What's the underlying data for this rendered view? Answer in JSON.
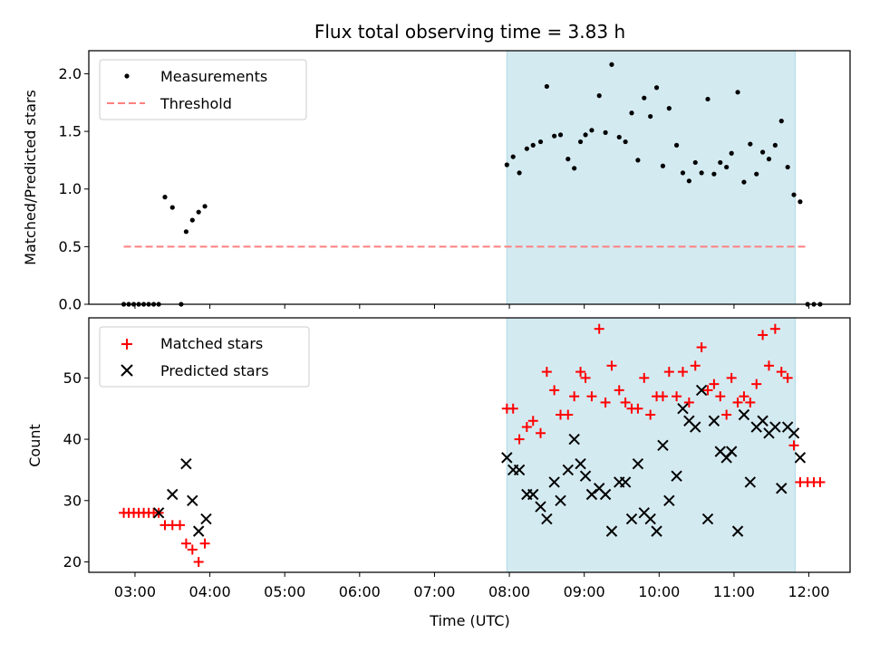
{
  "chart_data": [
    {
      "type": "scatter",
      "title": "Flux total observing time = 3.83 h",
      "xlabel": "",
      "ylabel": "Matched/Predicted stars",
      "ylim": [
        0,
        2.2
      ],
      "yticks": [
        0.0,
        0.5,
        1.0,
        1.5,
        2.0
      ],
      "ytick_labels": [
        "0.0",
        "0.5",
        "1.0",
        "1.5",
        "2.0"
      ],
      "xlim": [
        "02:23",
        "12:33"
      ],
      "observing_window": [
        "07:58",
        "11:49"
      ],
      "observing_window_color": "#d4eaf1",
      "legend_position": "upper-left",
      "series": [
        {
          "name": "Measurements",
          "marker": "dot",
          "color": "#000000",
          "points": [
            [
              "02:51",
              0
            ],
            [
              "02:55",
              0
            ],
            [
              "02:59",
              0
            ],
            [
              "03:03",
              0
            ],
            [
              "03:07",
              0
            ],
            [
              "03:11",
              0
            ],
            [
              "03:15",
              0
            ],
            [
              "03:19",
              0
            ],
            [
              "03:24",
              0.93
            ],
            [
              "03:30",
              0.84
            ],
            [
              "03:37",
              0
            ],
            [
              "03:41",
              0.63
            ],
            [
              "03:46",
              0.73
            ],
            [
              "03:51",
              0.8
            ],
            [
              "03:56",
              0.85
            ],
            [
              "07:58",
              1.21
            ],
            [
              "08:03",
              1.28
            ],
            [
              "08:08",
              1.14
            ],
            [
              "08:14",
              1.35
            ],
            [
              "08:19",
              1.38
            ],
            [
              "08:25",
              1.41
            ],
            [
              "08:30",
              1.89
            ],
            [
              "08:36",
              1.46
            ],
            [
              "08:41",
              1.47
            ],
            [
              "08:47",
              1.26
            ],
            [
              "08:52",
              1.18
            ],
            [
              "08:57",
              1.41
            ],
            [
              "09:01",
              1.47
            ],
            [
              "09:06",
              1.51
            ],
            [
              "09:12",
              1.81
            ],
            [
              "09:17",
              1.49
            ],
            [
              "09:22",
              2.08
            ],
            [
              "09:28",
              1.45
            ],
            [
              "09:33",
              1.41
            ],
            [
              "09:38",
              1.66
            ],
            [
              "09:43",
              1.25
            ],
            [
              "09:48",
              1.79
            ],
            [
              "09:53",
              1.63
            ],
            [
              "09:58",
              1.88
            ],
            [
              "10:03",
              1.2
            ],
            [
              "10:08",
              1.7
            ],
            [
              "10:14",
              1.38
            ],
            [
              "10:19",
              1.14
            ],
            [
              "10:24",
              1.07
            ],
            [
              "10:29",
              1.23
            ],
            [
              "10:34",
              1.14
            ],
            [
              "10:39",
              1.78
            ],
            [
              "10:44",
              1.13
            ],
            [
              "10:49",
              1.23
            ],
            [
              "10:54",
              1.19
            ],
            [
              "10:58",
              1.31
            ],
            [
              "11:03",
              1.84
            ],
            [
              "11:08",
              1.06
            ],
            [
              "11:13",
              1.39
            ],
            [
              "11:18",
              1.13
            ],
            [
              "11:23",
              1.32
            ],
            [
              "11:28",
              1.26
            ],
            [
              "11:33",
              1.38
            ],
            [
              "11:38",
              1.59
            ],
            [
              "11:43",
              1.19
            ],
            [
              "11:48",
              0.95
            ],
            [
              "11:53",
              0.89
            ],
            [
              "11:59",
              0
            ],
            [
              "12:04",
              0
            ],
            [
              "12:09",
              0
            ]
          ]
        },
        {
          "name": "Threshold",
          "marker": "dashed-line",
          "color": "#ff7f7f",
          "points": [
            [
              "02:51",
              0.5
            ],
            [
              "12:00",
              0.5
            ]
          ]
        }
      ]
    },
    {
      "type": "scatter",
      "title": "",
      "xlabel": "Time (UTC)",
      "ylabel": "Count",
      "ylim": [
        18.3,
        59.8
      ],
      "yticks": [
        20,
        30,
        40,
        50
      ],
      "ytick_labels": [
        "20",
        "30",
        "40",
        "50"
      ],
      "xlim": [
        "02:23",
        "12:33"
      ],
      "xticks": [
        "03:00",
        "04:00",
        "05:00",
        "06:00",
        "07:00",
        "08:00",
        "09:00",
        "10:00",
        "11:00",
        "12:00"
      ],
      "xtick_labels": [
        "03:00",
        "04:00",
        "05:00",
        "06:00",
        "07:00",
        "08:00",
        "09:00",
        "10:00",
        "11:00",
        "12:00"
      ],
      "observing_window": [
        "07:58",
        "11:49"
      ],
      "observing_window_color": "#d4eaf1",
      "legend_position": "upper-left",
      "series": [
        {
          "name": "Matched stars",
          "marker": "plus",
          "color": "#ff0000",
          "points": [
            [
              "02:51",
              28
            ],
            [
              "02:55",
              28
            ],
            [
              "02:59",
              28
            ],
            [
              "03:03",
              28
            ],
            [
              "03:07",
              28
            ],
            [
              "03:11",
              28
            ],
            [
              "03:15",
              28
            ],
            [
              "03:19",
              28
            ],
            [
              "03:24",
              26
            ],
            [
              "03:30",
              26
            ],
            [
              "03:36",
              26
            ],
            [
              "03:41",
              23
            ],
            [
              "03:46",
              22
            ],
            [
              "03:51",
              20
            ],
            [
              "03:56",
              23
            ],
            [
              "07:58",
              45
            ],
            [
              "08:03",
              45
            ],
            [
              "08:08",
              40
            ],
            [
              "08:14",
              42
            ],
            [
              "08:19",
              43
            ],
            [
              "08:25",
              41
            ],
            [
              "08:30",
              51
            ],
            [
              "08:36",
              48
            ],
            [
              "08:41",
              44
            ],
            [
              "08:47",
              44
            ],
            [
              "08:52",
              47
            ],
            [
              "08:57",
              51
            ],
            [
              "09:01",
              50
            ],
            [
              "09:06",
              47
            ],
            [
              "09:12",
              58
            ],
            [
              "09:17",
              46
            ],
            [
              "09:22",
              52
            ],
            [
              "09:28",
              48
            ],
            [
              "09:33",
              46
            ],
            [
              "09:38",
              45
            ],
            [
              "09:43",
              45
            ],
            [
              "09:48",
              50
            ],
            [
              "09:53",
              44
            ],
            [
              "09:58",
              47
            ],
            [
              "10:03",
              47
            ],
            [
              "10:08",
              51
            ],
            [
              "10:14",
              47
            ],
            [
              "10:19",
              51
            ],
            [
              "10:24",
              46
            ],
            [
              "10:29",
              52
            ],
            [
              "10:34",
              55
            ],
            [
              "10:39",
              48
            ],
            [
              "10:44",
              49
            ],
            [
              "10:49",
              47
            ],
            [
              "10:54",
              44
            ],
            [
              "10:58",
              50
            ],
            [
              "11:03",
              46
            ],
            [
              "11:08",
              47
            ],
            [
              "11:13",
              46
            ],
            [
              "11:18",
              49
            ],
            [
              "11:23",
              57
            ],
            [
              "11:28",
              52
            ],
            [
              "11:33",
              58
            ],
            [
              "11:38",
              51
            ],
            [
              "11:43",
              50
            ],
            [
              "11:48",
              39
            ],
            [
              "11:53",
              33
            ],
            [
              "11:59",
              33
            ],
            [
              "12:04",
              33
            ],
            [
              "12:09",
              33
            ]
          ]
        },
        {
          "name": "Predicted stars",
          "marker": "x",
          "color": "#000000",
          "points": [
            [
              "03:19",
              28
            ],
            [
              "03:30",
              31
            ],
            [
              "03:41",
              36
            ],
            [
              "03:46",
              30
            ],
            [
              "03:51",
              25
            ],
            [
              "03:57",
              27
            ],
            [
              "07:58",
              37
            ],
            [
              "08:03",
              35
            ],
            [
              "08:08",
              35
            ],
            [
              "08:14",
              31
            ],
            [
              "08:19",
              31
            ],
            [
              "08:25",
              29
            ],
            [
              "08:30",
              27
            ],
            [
              "08:36",
              33
            ],
            [
              "08:41",
              30
            ],
            [
              "08:47",
              35
            ],
            [
              "08:52",
              40
            ],
            [
              "08:57",
              36
            ],
            [
              "09:01",
              34
            ],
            [
              "09:06",
              31
            ],
            [
              "09:12",
              32
            ],
            [
              "09:17",
              31
            ],
            [
              "09:22",
              25
            ],
            [
              "09:28",
              33
            ],
            [
              "09:33",
              33
            ],
            [
              "09:38",
              27
            ],
            [
              "09:43",
              36
            ],
            [
              "09:48",
              28
            ],
            [
              "09:53",
              27
            ],
            [
              "09:58",
              25
            ],
            [
              "10:03",
              39
            ],
            [
              "10:08",
              30
            ],
            [
              "10:14",
              34
            ],
            [
              "10:19",
              45
            ],
            [
              "10:24",
              43
            ],
            [
              "10:29",
              42
            ],
            [
              "10:34",
              48
            ],
            [
              "10:39",
              27
            ],
            [
              "10:44",
              43
            ],
            [
              "10:49",
              38
            ],
            [
              "10:54",
              37
            ],
            [
              "10:58",
              38
            ],
            [
              "11:03",
              25
            ],
            [
              "11:08",
              44
            ],
            [
              "11:13",
              33
            ],
            [
              "11:18",
              42
            ],
            [
              "11:23",
              43
            ],
            [
              "11:28",
              41
            ],
            [
              "11:33",
              42
            ],
            [
              "11:38",
              32
            ],
            [
              "11:43",
              42
            ],
            [
              "11:48",
              41
            ],
            [
              "11:53",
              37
            ]
          ]
        }
      ]
    }
  ]
}
